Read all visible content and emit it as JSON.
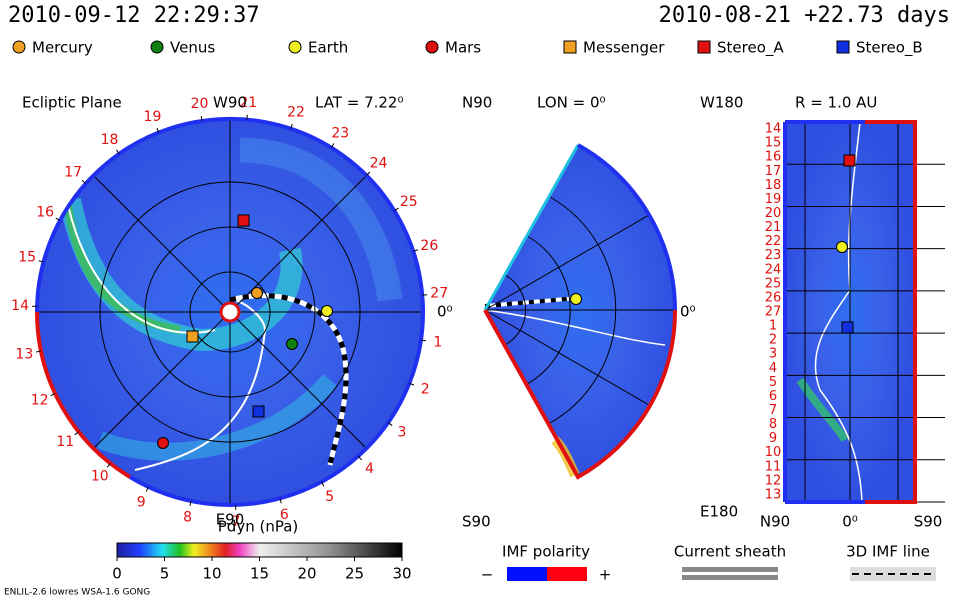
{
  "header": {
    "time": "2010-09-12 22:29:37",
    "run": "2010-08-21 +22.73 days"
  },
  "legend": [
    {
      "name": "Mercury",
      "color": "#f0a020",
      "shape": "circle"
    },
    {
      "name": "Venus",
      "color": "#108010",
      "shape": "circle"
    },
    {
      "name": "Earth",
      "color": "#f0f020",
      "shape": "circle"
    },
    {
      "name": "Mars",
      "color": "#e01010",
      "shape": "circle"
    },
    {
      "name": "Messenger",
      "color": "#f0a020",
      "shape": "square"
    },
    {
      "name": "Stereo_A",
      "color": "#e01010",
      "shape": "square"
    },
    {
      "name": "Stereo_B",
      "color": "#1030e0",
      "shape": "square"
    }
  ],
  "ecliptic": {
    "title": "Ecliptic Plane",
    "top": "W90",
    "lat": "LAT = 7.22⁰",
    "right": "0⁰",
    "bottom": "E90",
    "days": [
      1,
      2,
      3,
      4,
      5,
      6,
      7,
      8,
      9,
      10,
      11,
      12,
      13,
      14,
      15,
      16,
      17,
      18,
      19,
      20,
      21,
      22,
      23,
      24,
      25,
      26,
      27
    ]
  },
  "meridional": {
    "top": "N90",
    "lon": "LON = 0⁰",
    "right": "0⁰",
    "bottom": "S90"
  },
  "radius": {
    "top": "W180",
    "r": "R = 1.0 AU",
    "bottom": "E180",
    "left": "N90",
    "center": "0⁰",
    "right": "S90",
    "days": [
      14,
      15,
      16,
      17,
      18,
      19,
      20,
      21,
      22,
      23,
      24,
      25,
      26,
      27,
      1,
      2,
      3,
      4,
      5,
      6,
      7,
      8,
      9,
      10,
      11,
      12,
      13
    ]
  },
  "colorbar": {
    "title": "Pdyn (nPa)",
    "range": [
      0,
      30
    ],
    "ticks": [
      0,
      5,
      10,
      15,
      20,
      25,
      30
    ]
  },
  "polarity": {
    "title": "IMF polarity",
    "minus": "−",
    "plus": "+"
  },
  "sheath": {
    "title": "Current sheath"
  },
  "imf": {
    "title": "3D IMF line"
  },
  "footer": "ENLIL-2.6 lowres WSA-1.6 GONG"
}
